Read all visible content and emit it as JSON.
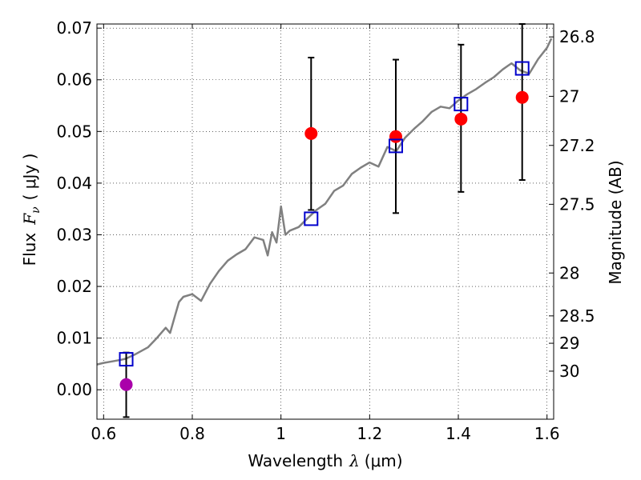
{
  "chart_data": {
    "type": "scatter",
    "title": "",
    "xlabel": "Wavelength",
    "xlabel_symbol": "λ",
    "xlabel_unit": "(μm)",
    "ylabel": "Flux",
    "ylabel_symbol": "F",
    "ylabel_symbol_sub": "ν",
    "ylabel_unit": "( μJy )",
    "y2label": "Magnitude (AB)",
    "xlim": [
      0.585,
      1.615
    ],
    "ylim": [
      -0.0057,
      0.0708
    ],
    "x_ticks": [
      0.6,
      0.8,
      1.0,
      1.2,
      1.4,
      1.6
    ],
    "x_tick_labels": [
      "0.6",
      "0.8",
      "1",
      "1.2",
      "1.4",
      "1.6"
    ],
    "y_ticks": [
      0.0,
      0.01,
      0.02,
      0.03,
      0.04,
      0.05,
      0.06,
      0.07
    ],
    "y_tick_labels": [
      "0.00",
      "0.01",
      "0.02",
      "0.03",
      "0.04",
      "0.05",
      "0.06",
      "0.07"
    ],
    "y2_ticks": [
      {
        "label": "26.8",
        "flux": 0.0683
      },
      {
        "label": "27",
        "flux": 0.0568
      },
      {
        "label": "27.2",
        "flux": 0.0473
      },
      {
        "label": "27.5",
        "flux": 0.0359
      },
      {
        "label": "28",
        "flux": 0.0226
      },
      {
        "label": "28.5",
        "flux": 0.0143
      },
      {
        "label": "29",
        "flux": 0.009
      },
      {
        "label": "30",
        "flux": 0.0036
      }
    ],
    "grid": true,
    "colors": {
      "model": "#808080",
      "points": "#ff0000",
      "point_low": "#aa00aa",
      "model_box": "#0000cc",
      "errorbar": "#000000"
    },
    "model_spectrum": {
      "x": [
        0.585,
        0.6,
        0.62,
        0.64,
        0.65,
        0.67,
        0.7,
        0.72,
        0.74,
        0.75,
        0.76,
        0.77,
        0.78,
        0.8,
        0.82,
        0.84,
        0.86,
        0.88,
        0.9,
        0.92,
        0.94,
        0.96,
        0.97,
        0.98,
        0.99,
        1.0,
        1.01,
        1.02,
        1.04,
        1.06,
        1.08,
        1.1,
        1.12,
        1.14,
        1.16,
        1.18,
        1.2,
        1.22,
        1.24,
        1.26,
        1.28,
        1.3,
        1.32,
        1.34,
        1.36,
        1.38,
        1.4,
        1.42,
        1.44,
        1.46,
        1.48,
        1.5,
        1.52,
        1.54,
        1.56,
        1.58,
        1.6,
        1.61
      ],
      "y": [
        0.0049,
        0.0052,
        0.0055,
        0.0058,
        0.006,
        0.0068,
        0.0082,
        0.01,
        0.012,
        0.011,
        0.014,
        0.017,
        0.018,
        0.0185,
        0.0172,
        0.0205,
        0.023,
        0.025,
        0.0262,
        0.0272,
        0.0295,
        0.029,
        0.026,
        0.0305,
        0.0285,
        0.0355,
        0.03,
        0.0308,
        0.0315,
        0.0332,
        0.0348,
        0.036,
        0.0385,
        0.0395,
        0.0418,
        0.043,
        0.044,
        0.0432,
        0.047,
        0.0462,
        0.0488,
        0.0505,
        0.052,
        0.0538,
        0.0548,
        0.0545,
        0.056,
        0.0572,
        0.0582,
        0.0594,
        0.0605,
        0.062,
        0.0632,
        0.0618,
        0.0612,
        0.064,
        0.0662,
        0.068
      ]
    },
    "observed": {
      "x": [
        0.651,
        1.068,
        1.259,
        1.406,
        1.544
      ],
      "y": [
        0.001,
        0.0496,
        0.049,
        0.0524,
        0.0566
      ],
      "yerr_low": [
        -0.0053,
        0.0348,
        0.0342,
        0.0383,
        0.0406
      ],
      "yerr_high": [
        0.0072,
        0.0643,
        0.0639,
        0.0668,
        0.0708
      ]
    },
    "model_points": {
      "x": [
        0.651,
        1.068,
        1.259,
        1.406,
        1.544
      ],
      "y": [
        0.0059,
        0.0331,
        0.0472,
        0.0553,
        0.0622
      ]
    }
  }
}
